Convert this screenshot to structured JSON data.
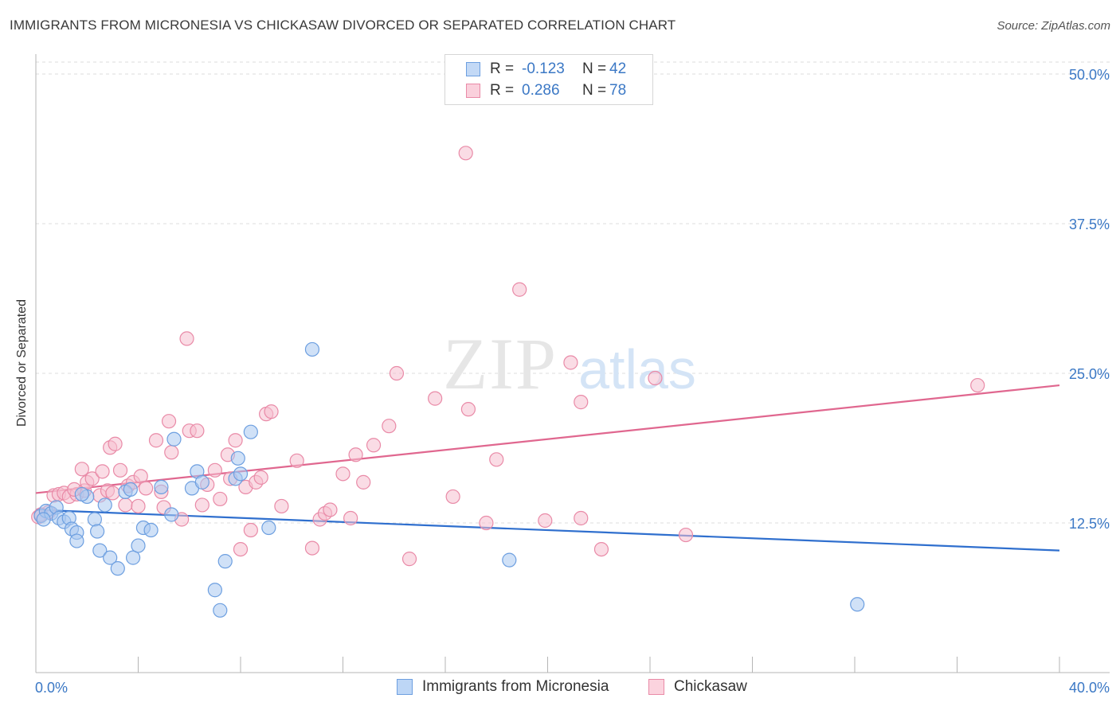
{
  "title": "IMMIGRANTS FROM MICRONESIA VS CHICKASAW DIVORCED OR SEPARATED CORRELATION CHART",
  "source": "Source: ZipAtlas.com",
  "watermark": {
    "zip": "ZIP",
    "atlas": "atlas"
  },
  "legend_top": {
    "rows": [
      {
        "r_label": "R =",
        "r_value": "-0.123",
        "n_label": "N =",
        "n_value": "42",
        "color": "#a9c9f0",
        "border": "#6d9fe0"
      },
      {
        "r_label": "R =",
        "r_value": "0.286",
        "n_label": "N =",
        "n_value": "78",
        "color": "#f6c0cf",
        "border": "#e98aa7"
      }
    ]
  },
  "legend_bottom": {
    "items": [
      {
        "label": "Immigrants from Micronesia",
        "color": "#bdd6f6",
        "border": "#6d9fe0"
      },
      {
        "label": "Chickasaw",
        "color": "#fbd3de",
        "border": "#e98aa7"
      }
    ]
  },
  "chart_data": {
    "type": "scatter",
    "title": "IMMIGRANTS FROM MICRONESIA VS CHICKASAW DIVORCED OR SEPARATED CORRELATION CHART",
    "xlabel": "",
    "ylabel": "Divorced or Separated",
    "xlim": [
      0,
      40
    ],
    "ylim": [
      0,
      51
    ],
    "x_tick_labels": [
      "0.0%",
      "40.0%"
    ],
    "y_ticks": [
      12.5,
      25.0,
      37.5,
      50.0
    ],
    "y_tick_labels": [
      "12.5%",
      "25.0%",
      "37.5%",
      "50.0%"
    ],
    "grid": "horizontal dashed",
    "legend_position": "top-center",
    "series": [
      {
        "name": "Immigrants from Micronesia",
        "color": "#6d9fe0",
        "fill": "#a9c9f0",
        "trend": {
          "x": [
            0,
            40
          ],
          "y": [
            13.6,
            10.2
          ],
          "color": "#2f6fce"
        },
        "points": [
          [
            0.2,
            13.1
          ],
          [
            0.4,
            13.5
          ],
          [
            0.6,
            13.3
          ],
          [
            0.8,
            13.8
          ],
          [
            0.9,
            12.9
          ],
          [
            1.1,
            12.6
          ],
          [
            1.3,
            12.9
          ],
          [
            1.4,
            12.0
          ],
          [
            1.6,
            11.7
          ],
          [
            1.6,
            11.0
          ],
          [
            2.0,
            14.7
          ],
          [
            2.3,
            12.8
          ],
          [
            2.4,
            11.8
          ],
          [
            2.5,
            10.2
          ],
          [
            2.7,
            14.0
          ],
          [
            2.9,
            9.6
          ],
          [
            3.2,
            8.7
          ],
          [
            3.5,
            15.1
          ],
          [
            3.7,
            15.3
          ],
          [
            3.8,
            9.6
          ],
          [
            4.0,
            10.6
          ],
          [
            4.2,
            12.1
          ],
          [
            4.5,
            11.9
          ],
          [
            4.9,
            15.5
          ],
          [
            5.3,
            13.2
          ],
          [
            5.4,
            19.5
          ],
          [
            6.1,
            15.4
          ],
          [
            6.3,
            16.8
          ],
          [
            6.5,
            15.9
          ],
          [
            7.0,
            6.9
          ],
          [
            7.2,
            5.2
          ],
          [
            7.4,
            9.3
          ],
          [
            7.8,
            16.2
          ],
          [
            7.9,
            17.9
          ],
          [
            8.0,
            16.6
          ],
          [
            8.4,
            20.1
          ],
          [
            9.1,
            12.1
          ],
          [
            10.8,
            27.0
          ],
          [
            18.5,
            9.4
          ],
          [
            32.1,
            5.7
          ],
          [
            0.3,
            12.8
          ],
          [
            1.8,
            14.9
          ]
        ]
      },
      {
        "name": "Chickasaw",
        "color": "#e98aa7",
        "fill": "#f6c0cf",
        "trend": {
          "x": [
            0,
            40
          ],
          "y": [
            15.0,
            24.0
          ],
          "color": "#e0678f"
        },
        "points": [
          [
            0.1,
            13.0
          ],
          [
            0.5,
            13.4
          ],
          [
            0.7,
            14.8
          ],
          [
            0.9,
            14.9
          ],
          [
            1.1,
            15.0
          ],
          [
            1.3,
            14.7
          ],
          [
            1.6,
            14.9
          ],
          [
            1.8,
            17.0
          ],
          [
            1.9,
            15.2
          ],
          [
            2.0,
            15.9
          ],
          [
            2.2,
            16.2
          ],
          [
            2.5,
            14.8
          ],
          [
            2.6,
            16.8
          ],
          [
            2.8,
            15.2
          ],
          [
            2.9,
            18.8
          ],
          [
            3.1,
            19.1
          ],
          [
            3.3,
            16.9
          ],
          [
            3.5,
            14.0
          ],
          [
            3.6,
            15.6
          ],
          [
            3.8,
            15.9
          ],
          [
            4.0,
            13.9
          ],
          [
            4.1,
            16.4
          ],
          [
            4.3,
            15.4
          ],
          [
            4.7,
            19.4
          ],
          [
            4.9,
            15.1
          ],
          [
            5.0,
            13.8
          ],
          [
            5.2,
            21.0
          ],
          [
            5.3,
            18.4
          ],
          [
            5.7,
            12.8
          ],
          [
            5.9,
            27.9
          ],
          [
            6.0,
            20.2
          ],
          [
            6.3,
            20.2
          ],
          [
            6.5,
            14.0
          ],
          [
            6.7,
            15.7
          ],
          [
            7.0,
            16.9
          ],
          [
            7.2,
            14.5
          ],
          [
            7.5,
            18.2
          ],
          [
            7.6,
            16.2
          ],
          [
            7.8,
            19.4
          ],
          [
            8.0,
            10.3
          ],
          [
            8.2,
            15.5
          ],
          [
            8.4,
            11.9
          ],
          [
            8.6,
            15.9
          ],
          [
            8.8,
            16.3
          ],
          [
            9.0,
            21.6
          ],
          [
            9.2,
            21.8
          ],
          [
            9.6,
            13.9
          ],
          [
            10.2,
            17.7
          ],
          [
            10.8,
            10.4
          ],
          [
            11.1,
            12.8
          ],
          [
            11.3,
            13.3
          ],
          [
            11.5,
            13.6
          ],
          [
            12.0,
            16.6
          ],
          [
            12.3,
            12.9
          ],
          [
            12.5,
            18.2
          ],
          [
            12.8,
            15.9
          ],
          [
            13.2,
            19.0
          ],
          [
            13.8,
            20.6
          ],
          [
            14.1,
            25.0
          ],
          [
            14.6,
            9.5
          ],
          [
            15.6,
            22.9
          ],
          [
            16.3,
            14.7
          ],
          [
            16.8,
            43.4
          ],
          [
            16.9,
            22.0
          ],
          [
            17.6,
            12.5
          ],
          [
            18.0,
            17.8
          ],
          [
            18.9,
            32.0
          ],
          [
            19.9,
            12.7
          ],
          [
            20.9,
            25.9
          ],
          [
            21.3,
            12.9
          ],
          [
            21.3,
            22.6
          ],
          [
            22.1,
            10.3
          ],
          [
            24.2,
            24.6
          ],
          [
            25.4,
            11.5
          ],
          [
            36.8,
            24.0
          ],
          [
            0.2,
            13.2
          ],
          [
            1.5,
            15.3
          ],
          [
            3.0,
            15.0
          ]
        ]
      }
    ]
  }
}
